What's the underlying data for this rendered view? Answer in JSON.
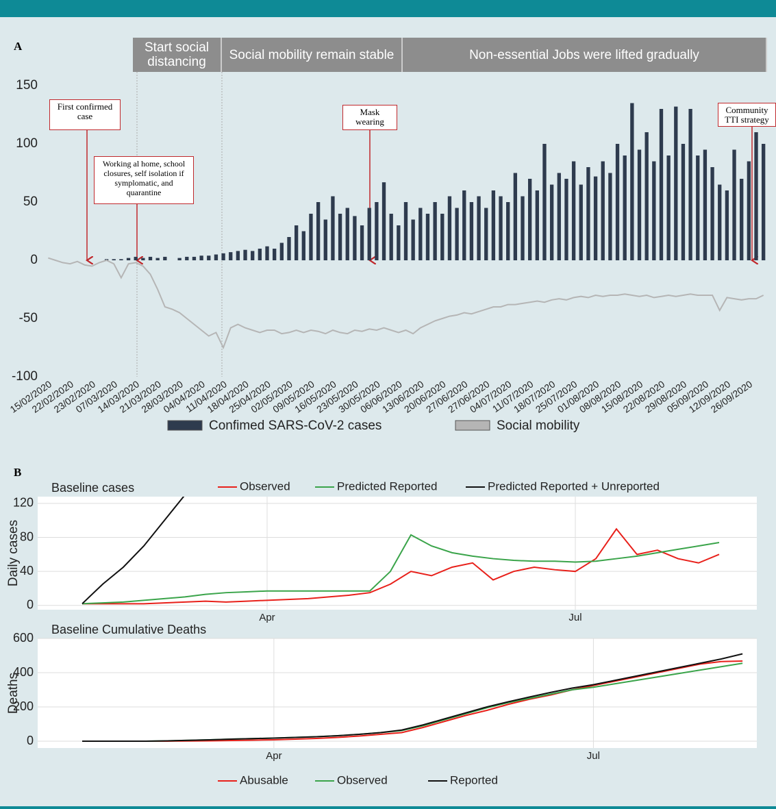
{
  "panel_a_label": "A",
  "panel_b_label": "B",
  "chart_data": [
    {
      "type": "bar_line",
      "phases": [
        "Start social distancing",
        "Social mobility remain stable",
        "Non-essential Jobs were lifted gradually"
      ],
      "annotations": [
        "First confirmed case",
        "Working al home, school closures, self isolation if symplomatic, and quarantine",
        "Mask wearing",
        "Community TTI strategy"
      ],
      "categories": [
        "15/02/2020",
        null,
        null,
        "22/02/2020",
        null,
        null,
        "23/02/2020",
        null,
        null,
        "07/03/2020",
        null,
        null,
        "14/03/2020",
        null,
        null,
        "21/03/2020",
        null,
        null,
        "28/03/2020",
        null,
        null,
        "04/04/2020",
        null,
        null,
        "11/04/2020",
        null,
        null,
        "18/04/2020",
        null,
        null,
        "25/04/2020",
        null,
        null,
        "02/05/2020",
        null,
        null,
        "09/05/2020",
        null,
        null,
        "16/05/2020",
        null,
        null,
        "23/05/2020",
        null,
        null,
        "30/05/2020",
        null,
        null,
        "06/06/2020",
        null,
        null,
        "13/06/2020",
        null,
        null,
        "20/06/2020",
        null,
        null,
        "27/06/2020",
        null,
        null,
        "27/06/2020",
        null,
        null,
        "04/07/2020",
        null,
        null,
        "11/07/2020",
        null,
        null,
        "18/07/2020",
        null,
        null,
        "25/07/2020",
        null,
        null,
        "01/08/2020",
        null,
        null,
        "08/08/2020",
        null,
        null,
        "15/08/2020",
        null,
        null,
        "22/08/2020",
        null,
        null,
        "29/08/2020",
        null,
        null,
        "05/09/2020",
        null,
        null,
        "12/09/2020",
        null,
        null,
        "26/09/2020",
        null,
        null
      ],
      "series": [
        {
          "name": "Confimed SARS-CoV-2 cases",
          "kind": "bar",
          "color": "#2e3b4e",
          "values": [
            0,
            0,
            0,
            0,
            0,
            0,
            0,
            0,
            1,
            1,
            1,
            2,
            3,
            2,
            3,
            2,
            3,
            0,
            2,
            3,
            3,
            4,
            4,
            5,
            6,
            7,
            8,
            9,
            8,
            10,
            12,
            10,
            15,
            20,
            30,
            25,
            40,
            50,
            35,
            55,
            40,
            45,
            38,
            30,
            45,
            50,
            67,
            40,
            30,
            50,
            35,
            45,
            40,
            50,
            40,
            55,
            45,
            60,
            50,
            55,
            45,
            60,
            55,
            50,
            75,
            55,
            70,
            60,
            100,
            65,
            75,
            70,
            85,
            65,
            80,
            72,
            85,
            75,
            100,
            90,
            135,
            95,
            110,
            85,
            130,
            90,
            132,
            100,
            130,
            90,
            95,
            80,
            65,
            60,
            95,
            70,
            85,
            110,
            100
          ]
        },
        {
          "name": "Social mobility",
          "kind": "line",
          "color": "#b5b5b5",
          "values": [
            2,
            0,
            -2,
            -3,
            -1,
            -4,
            -5,
            -2,
            0,
            -3,
            -15,
            -3,
            -2,
            -5,
            -12,
            -25,
            -40,
            -42,
            -45,
            -50,
            -55,
            -60,
            -65,
            -62,
            -75,
            -58,
            -55,
            -58,
            -60,
            -62,
            -60,
            -60,
            -63,
            -62,
            -60,
            -62,
            -60,
            -61,
            -63,
            -60,
            -62,
            -63,
            -60,
            -61,
            -59,
            -60,
            -58,
            -60,
            -62,
            -60,
            -63,
            -58,
            -55,
            -52,
            -50,
            -48,
            -47,
            -45,
            -46,
            -44,
            -42,
            -40,
            -40,
            -38,
            -38,
            -37,
            -36,
            -35,
            -36,
            -34,
            -33,
            -34,
            -32,
            -31,
            -32,
            -30,
            -31,
            -30,
            -30,
            -29,
            -30,
            -31,
            -30,
            -32,
            -31,
            -30,
            -31,
            -30,
            -29,
            -30,
            -30,
            -30,
            -43,
            -32,
            -33,
            -34,
            -33,
            -33,
            -30
          ]
        }
      ],
      "ylim": [
        -100,
        150
      ],
      "yticks": [
        -100,
        -50,
        0,
        50,
        100,
        150
      ]
    },
    {
      "type": "line",
      "title": "Baseline cases",
      "ylabel": "Daily cases",
      "categories": [
        null,
        null,
        null,
        null,
        null,
        null,
        null,
        null,
        null,
        "Apr",
        null,
        null,
        null,
        null,
        null,
        null,
        null,
        null,
        null,
        null,
        null,
        null,
        null,
        null,
        "Jul",
        null,
        null,
        null,
        null,
        null,
        null,
        null
      ],
      "series": [
        {
          "name": "Observed",
          "color": "#e8201a",
          "values": [
            2,
            2,
            2,
            2,
            3,
            4,
            5,
            4,
            5,
            6,
            7,
            8,
            10,
            12,
            15,
            25,
            40,
            35,
            45,
            50,
            30,
            40,
            45,
            42,
            40,
            55,
            90,
            60,
            65,
            55,
            50,
            60
          ]
        },
        {
          "name": "Predicted Reported",
          "color": "#3aa44a",
          "values": [
            2,
            3,
            4,
            6,
            8,
            10,
            13,
            15,
            16,
            17,
            17,
            17,
            17,
            17,
            17,
            40,
            83,
            70,
            62,
            58,
            55,
            53,
            52,
            52,
            51,
            52,
            55,
            58,
            62,
            66,
            70,
            74
          ]
        },
        {
          "name": "Predicted Reported + Unreported",
          "color": "#111111",
          "values": [
            2,
            25,
            45,
            70,
            100,
            130,
            null,
            null,
            null,
            null,
            null,
            null,
            null,
            null,
            null,
            null,
            null,
            null,
            null,
            null,
            null,
            null,
            null,
            null,
            null,
            null,
            null,
            null,
            null,
            null,
            null,
            null
          ]
        }
      ],
      "ylim": [
        -5,
        128
      ],
      "yticks": [
        0,
        40,
        80,
        120
      ],
      "grid": true
    },
    {
      "type": "line",
      "title": "Baseline Cumulative Deaths",
      "ylabel": "Deaths",
      "categories": [
        null,
        null,
        null,
        null,
        null,
        null,
        null,
        null,
        null,
        "Apr",
        null,
        null,
        null,
        null,
        null,
        null,
        null,
        null,
        null,
        null,
        null,
        null,
        null,
        null,
        "Jul",
        null,
        null,
        null,
        null,
        null,
        null,
        null
      ],
      "series": [
        {
          "name": "Abusable",
          "color": "#e8201a",
          "values": [
            0,
            0,
            0,
            0,
            0,
            1,
            2,
            4,
            6,
            8,
            12,
            16,
            22,
            30,
            40,
            50,
            80,
            115,
            150,
            180,
            215,
            245,
            270,
            300,
            325,
            350,
            375,
            400,
            425,
            450,
            465,
            468
          ]
        },
        {
          "name": "Observed",
          "color": "#3aa44a",
          "values": [
            0,
            0,
            0,
            0,
            2,
            5,
            8,
            12,
            15,
            18,
            22,
            26,
            32,
            40,
            50,
            62,
            90,
            125,
            160,
            195,
            225,
            250,
            275,
            300,
            315,
            335,
            355,
            375,
            395,
            415,
            435,
            455
          ]
        },
        {
          "name": "Reported",
          "color": "#111111",
          "values": [
            0,
            0,
            0,
            0,
            2,
            5,
            8,
            12,
            15,
            18,
            22,
            26,
            32,
            40,
            50,
            65,
            95,
            130,
            165,
            200,
            230,
            258,
            285,
            310,
            330,
            355,
            380,
            405,
            430,
            455,
            480,
            510
          ]
        }
      ],
      "ylim": [
        -40,
        600
      ],
      "yticks": [
        0,
        200,
        400,
        600
      ],
      "grid": true
    }
  ]
}
